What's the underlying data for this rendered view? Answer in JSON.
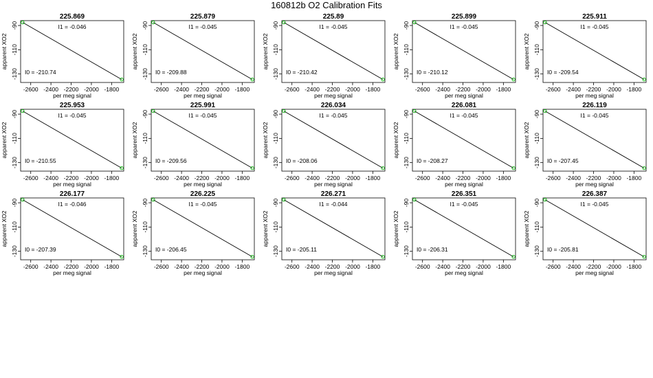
{
  "page_title": "160812b   O2 Calibration Fits",
  "chart_data": {
    "type": "scatter",
    "layout": "3x5 grid of small multiples",
    "xlabel": "per meg signal",
    "ylabel": "apparent XO2",
    "xlim": [
      -2700,
      -1680
    ],
    "ylim": [
      -137,
      -86
    ],
    "xticks": [
      -2600,
      -2400,
      -2200,
      -2000,
      -1800
    ],
    "xtick_labels": [
      "-2600",
      "-2400",
      "-2200",
      "-2000",
      "-1800"
    ],
    "yticks": [
      -90,
      -110,
      -130
    ],
    "ytick_labels": [
      "-90",
      "-110",
      "-130"
    ],
    "grid": false,
    "line_color": "#000000",
    "point_color": "#00bb00",
    "point_marker": "circle",
    "i1_prefix": "I1 =  ",
    "i0_prefix": "I0 =  ",
    "panels": [
      {
        "title": "225.869",
        "i1": "-0.046",
        "i0": "-210.74",
        "x": [
          -2680,
          -1700
        ],
        "y": [
          -87.5,
          -134.5
        ]
      },
      {
        "title": "225.879",
        "i1": "-0.045",
        "i0": "-209.88",
        "x": [
          -2680,
          -1700
        ],
        "y": [
          -87.5,
          -134.5
        ]
      },
      {
        "title": "225.89",
        "i1": "-0.045",
        "i0": "-210.42",
        "x": [
          -2680,
          -1700
        ],
        "y": [
          -87.5,
          -134.5
        ]
      },
      {
        "title": "225.899",
        "i1": "-0.045",
        "i0": "-210.12",
        "x": [
          -2680,
          -1700
        ],
        "y": [
          -87.5,
          -134.5
        ]
      },
      {
        "title": "225.911",
        "i1": "-0.045",
        "i0": "-209.54",
        "x": [
          -2680,
          -1700
        ],
        "y": [
          -87.5,
          -134.5
        ]
      },
      {
        "title": "225.953",
        "i1": "-0.045",
        "i0": "-210.55",
        "x": [
          -2680,
          -1700
        ],
        "y": [
          -87.5,
          -134.5
        ]
      },
      {
        "title": "225.991",
        "i1": "-0.045",
        "i0": "-209.56",
        "x": [
          -2680,
          -1700
        ],
        "y": [
          -87.5,
          -134.5
        ]
      },
      {
        "title": "226.034",
        "i1": "-0.045",
        "i0": "-208.06",
        "x": [
          -2680,
          -1700
        ],
        "y": [
          -87.5,
          -134.5
        ]
      },
      {
        "title": "226.081",
        "i1": "-0.045",
        "i0": "-208.27",
        "x": [
          -2680,
          -1700
        ],
        "y": [
          -87.5,
          -134.5
        ]
      },
      {
        "title": "226.119",
        "i1": "-0.045",
        "i0": "-207.45",
        "x": [
          -2680,
          -1700
        ],
        "y": [
          -87.5,
          -134.5
        ]
      },
      {
        "title": "226.177",
        "i1": "-0.046",
        "i0": "-207.39",
        "x": [
          -2680,
          -1700
        ],
        "y": [
          -87.5,
          -134.5
        ]
      },
      {
        "title": "226.225",
        "i1": "-0.045",
        "i0": "-206.45",
        "x": [
          -2680,
          -1700
        ],
        "y": [
          -87.5,
          -134.5
        ]
      },
      {
        "title": "226.271",
        "i1": "-0.044",
        "i0": "-205.11",
        "x": [
          -2680,
          -1700
        ],
        "y": [
          -87.5,
          -134.5
        ]
      },
      {
        "title": "226.351",
        "i1": "-0.045",
        "i0": "-206.31",
        "x": [
          -2680,
          -1700
        ],
        "y": [
          -87.5,
          -134.5
        ]
      },
      {
        "title": "226.387",
        "i1": "-0.045",
        "i0": "-205.81",
        "x": [
          -2680,
          -1700
        ],
        "y": [
          -87.5,
          -134.5
        ]
      }
    ]
  }
}
